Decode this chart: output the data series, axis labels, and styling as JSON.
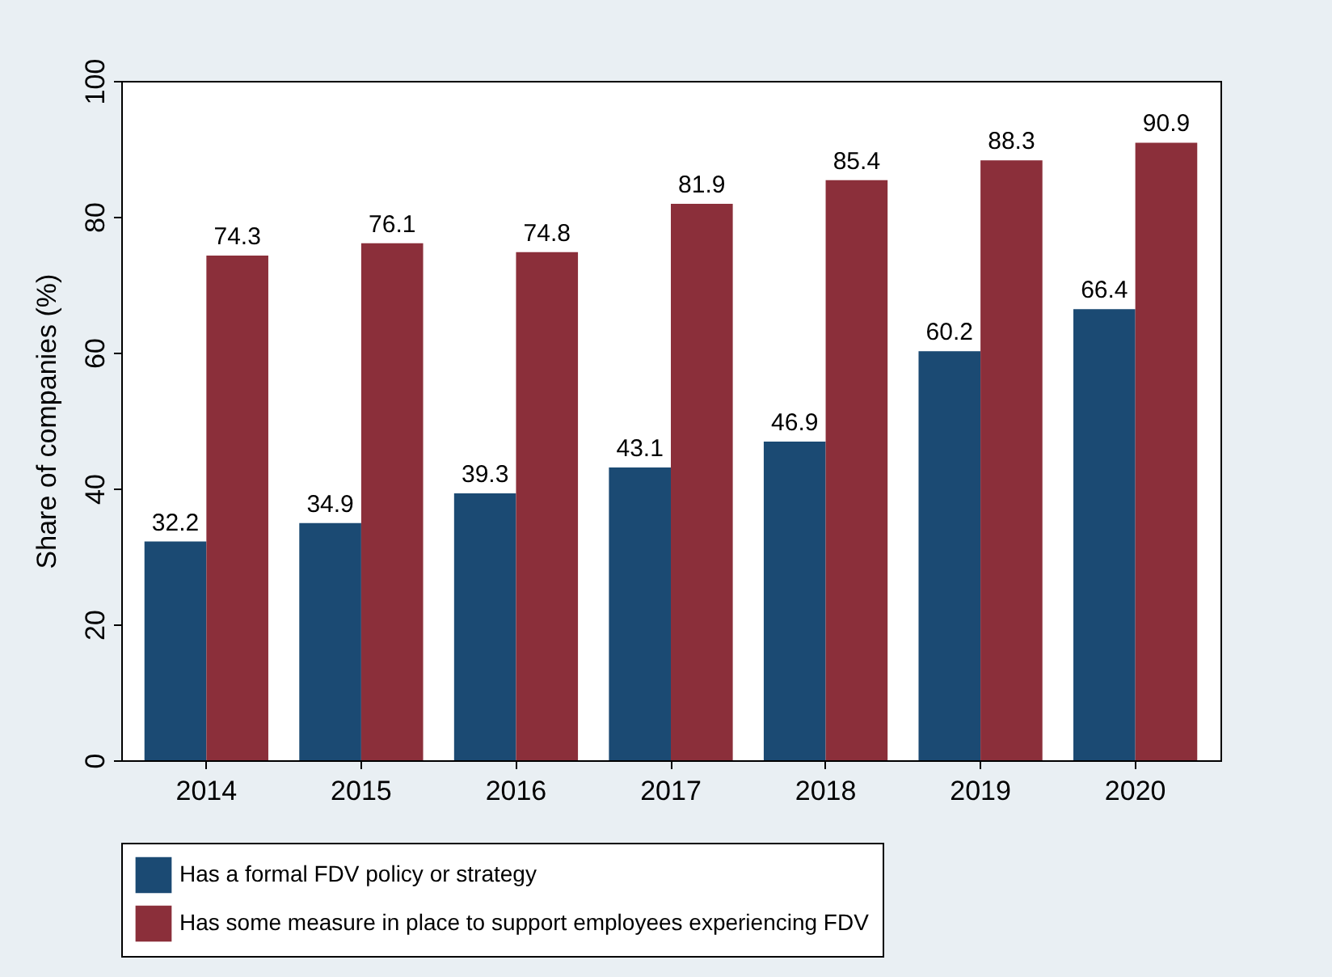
{
  "chart_data": {
    "type": "bar",
    "ylabel": "Share of companies (%)",
    "categories": [
      "2014",
      "2015",
      "2016",
      "2017",
      "2018",
      "2019",
      "2020"
    ],
    "series": [
      {
        "name": "Has a formal FDV policy or strategy",
        "color": "#1b4a73",
        "values": [
          32.2,
          34.9,
          39.3,
          43.1,
          46.9,
          60.2,
          66.4
        ]
      },
      {
        "name": "Has some measure in place to support employees experiencing FDV",
        "color": "#8b2f3a",
        "values": [
          74.3,
          76.1,
          74.8,
          81.9,
          85.4,
          88.3,
          90.9
        ]
      }
    ],
    "ylim": [
      0,
      100
    ],
    "yticks": [
      0,
      20,
      40,
      60,
      80,
      100
    ],
    "grid": false,
    "legend": "bottom",
    "data_labels": true
  }
}
